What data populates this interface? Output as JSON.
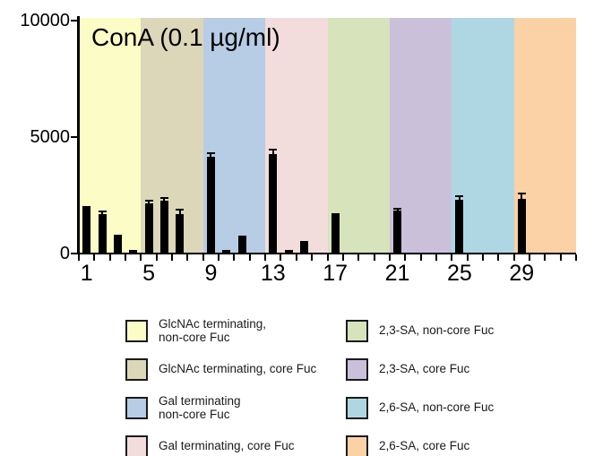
{
  "chart_data": {
    "type": "bar",
    "title": "ConA (0.1 µg/ml)",
    "ylabel": "",
    "xlabel": "",
    "ylim": [
      0,
      10000
    ],
    "yticks": [
      0,
      5000,
      10000
    ],
    "ytick_labels": [
      "0",
      "5000",
      "10000"
    ],
    "xtick_labels": [
      "1",
      "5",
      "9",
      "13",
      "17",
      "21",
      "25",
      "29"
    ],
    "xtick_label_positions": [
      1,
      5,
      9,
      13,
      17,
      21,
      25,
      29
    ],
    "minor_x_ticks_every": 1,
    "categories": [
      1,
      2,
      3,
      4,
      5,
      6,
      7,
      8,
      9,
      10,
      11,
      12,
      13,
      14,
      15,
      16,
      17,
      18,
      19,
      20,
      21,
      22,
      23,
      24,
      25,
      26,
      27,
      28,
      29,
      30,
      31,
      32
    ],
    "values": [
      2050,
      1680,
      810,
      150,
      2150,
      2250,
      1700,
      0,
      4150,
      170,
      760,
      0,
      4250,
      170,
      520,
      0,
      1730,
      0,
      0,
      0,
      1840,
      0,
      0,
      0,
      2300,
      0,
      0,
      0,
      2350,
      0,
      0,
      0
    ],
    "errors": [
      0,
      120,
      0,
      0,
      100,
      130,
      180,
      0,
      170,
      0,
      0,
      0,
      220,
      0,
      0,
      0,
      0,
      0,
      0,
      0,
      70,
      0,
      0,
      0,
      160,
      0,
      0,
      0,
      220,
      0,
      0,
      0
    ],
    "bar_color": "#000000",
    "grid": false,
    "background_groups": [
      {
        "label": "GlcNAc terminating, non-core Fuc",
        "color": "#FCFCC6",
        "categories": "1-4"
      },
      {
        "label": "GlcNAc terminating, core Fuc",
        "color": "#DBD7B8",
        "categories": "5-8"
      },
      {
        "label": "Gal terminating non-core Fuc",
        "color": "#B7CCE5",
        "categories": "9-12"
      },
      {
        "label": "Gal terminating, core Fuc",
        "color": "#F2DDDC",
        "categories": "13-16"
      },
      {
        "label": "2,3-SA, non-core Fuc",
        "color": "#D6E3BB",
        "categories": "17-20"
      },
      {
        "label": "2,3-SA, core Fuc",
        "color": "#CBC0DA",
        "categories": "21-24"
      },
      {
        "label": "2,6-SA, non-core Fuc",
        "color": "#AFD7E3",
        "categories": "25-28"
      },
      {
        "label": "2,6-SA, core Fuc",
        "color": "#FBD2A5",
        "categories": "29-32"
      }
    ]
  },
  "legend": {
    "position": "bottom",
    "columns": [
      {
        "items": [
          {
            "color": "#FCFCC6",
            "lines": [
              "GlcNAc terminating,",
              "non-core Fuc"
            ]
          },
          {
            "color": "#DBD7B8",
            "lines": [
              "GlcNAc terminating, core Fuc"
            ]
          },
          {
            "color": "#B7CCE5",
            "lines": [
              "Gal terminating",
              "non-core Fuc"
            ]
          },
          {
            "color": "#F2DDDC",
            "lines": [
              "Gal terminating, core Fuc"
            ]
          }
        ]
      },
      {
        "items": [
          {
            "color": "#D6E3BB",
            "lines": [
              "2,3-SA, non-core Fuc"
            ]
          },
          {
            "color": "#CBC0DA",
            "lines": [
              "2,3-SA, core Fuc"
            ]
          },
          {
            "color": "#AFD7E3",
            "lines": [
              "2,6-SA, non-core Fuc"
            ]
          },
          {
            "color": "#FBD2A5",
            "lines": [
              "2,6-SA, core Fuc"
            ]
          }
        ]
      }
    ]
  }
}
